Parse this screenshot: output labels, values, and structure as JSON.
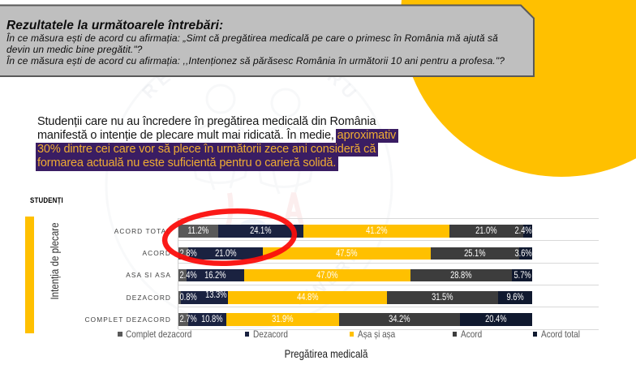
{
  "slide": {
    "colors": {
      "accent_yellow": "#FFC000",
      "header_box_fill": "#BFBFBF",
      "header_box_border": "#595959",
      "highlight_bg": "#3A1D63",
      "highlight_fg": "#EFAC33",
      "annotation_red": "#FB0E0C"
    },
    "header_box": {
      "title": "Rezultatele la următoarele întrebări:",
      "question_lines": [
        "În ce măsura ești de acord cu afirmația: „Simt că pregătirea medicală pe care o primesc în România mă ajută să",
        "devin un medic bine pregătit.\"?",
        "În ce măsura ești de acord cu afirmația: ,,Intenționez să părăsesc România în următorii 10 ani pentru a profesa.\"?"
      ]
    },
    "paragraph": {
      "lines": [
        {
          "plain": "Studenții care nu au încredere în pregătirea medicală din România",
          "highlight": ""
        },
        {
          "plain": "manifestă o intenție de plecare mult mai ridicată. În medie, ",
          "highlight": "aproximativ"
        },
        {
          "plain": "",
          "highlight": "30% dintre cei care vor să plece în următorii zece ani consideră că"
        },
        {
          "plain": "",
          "highlight": "formarea actuală nu este suficientă pentru o carieră solidă."
        }
      ]
    },
    "section_label": "STUDENȚI",
    "watermark": {
      "arc_text_top": "RESPECT PENTRU",
      "arc_text_bottom": "TINERI"
    }
  },
  "chart_data": {
    "type": "bar",
    "stacked": true,
    "percent_stacked": true,
    "orientation": "horizontal",
    "title": "",
    "xlabel": "Pregătirea medicală",
    "ylabel": "Intenția de plecare",
    "xlim": [
      0,
      100
    ],
    "grid": "category-boundaries",
    "legend_position": "bottom",
    "categories": [
      "ACORD TOTAL",
      "ACORD",
      "ASA SI ASA",
      "DEZACORD",
      "COMPLET DEZACORD"
    ],
    "series": [
      {
        "name": "Complet dezacord",
        "color": "#595959",
        "values": [
          11.2,
          2.8,
          2.4,
          0.8,
          2.7
        ]
      },
      {
        "name": "Dezacord",
        "color": "#1A2240",
        "values": [
          24.1,
          21.0,
          16.2,
          13.3,
          10.8
        ]
      },
      {
        "name": "Așa și așa",
        "color": "#FFC000",
        "values": [
          41.2,
          47.5,
          47.0,
          44.8,
          31.9
        ]
      },
      {
        "name": "Acord",
        "color": "#3D3D3D",
        "values": [
          21.0,
          25.1,
          28.8,
          31.5,
          34.2
        ]
      },
      {
        "name": "Acord total",
        "color": "#10192F",
        "values": [
          2.4,
          3.6,
          5.7,
          9.6,
          20.4
        ]
      }
    ],
    "value_label_suffix": "%",
    "label_offsets": [
      {
        "row": 3,
        "seg": 1,
        "dx": 5,
        "dy": -3
      }
    ]
  }
}
